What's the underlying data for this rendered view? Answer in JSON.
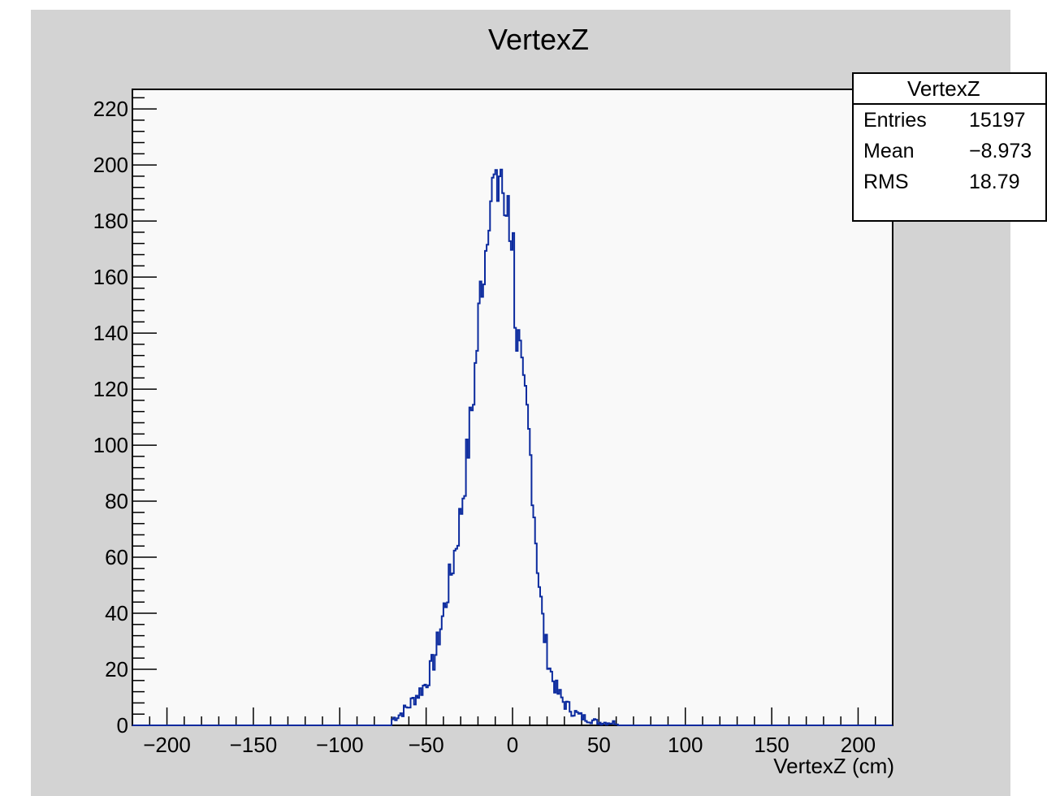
{
  "chart_data": {
    "type": "line",
    "title": "VertexZ",
    "xlabel": "VertexZ (cm)",
    "ylabel": "",
    "xlim": [
      -220,
      220
    ],
    "ylim": [
      0,
      227
    ],
    "xticks": [
      -200,
      -150,
      -100,
      -50,
      0,
      50,
      100,
      150,
      200
    ],
    "xtick_labels": [
      "−200",
      "−150",
      "−100",
      "−50",
      "0",
      "50",
      "100",
      "150",
      "200"
    ],
    "yticks": [
      0,
      20,
      40,
      60,
      80,
      100,
      120,
      140,
      160,
      180,
      200,
      220
    ],
    "ytick_labels": [
      "0",
      "20",
      "40",
      "60",
      "80",
      "100",
      "120",
      "140",
      "160",
      "180",
      "200",
      "220"
    ],
    "grid": false,
    "legend": "none",
    "series": [
      {
        "color": "#0b2a9e",
        "bin_width": 1,
        "x": [
          -70,
          -65,
          -60,
          -55,
          -50,
          -45,
          -40,
          -35,
          -30,
          -25,
          -22,
          -20,
          -18,
          -16,
          -14,
          -12,
          -10,
          -9,
          -8,
          -7,
          -6,
          -5,
          -4,
          -3,
          -2,
          -1,
          0,
          2,
          4,
          6,
          8,
          10,
          12,
          14,
          16,
          18,
          20,
          23,
          26,
          30,
          35,
          40,
          45,
          50,
          55,
          60,
          65,
          70
        ],
        "y": [
          2,
          4,
          7,
          11,
          15,
          24,
          40,
          56,
          75,
          103,
          123,
          140,
          160,
          165,
          187,
          190,
          194,
          180,
          203,
          192,
          205,
          178,
          170,
          196,
          185,
          172,
          180,
          140,
          134,
          118,
          113,
          100,
          82,
          62,
          47,
          34,
          26,
          17,
          12,
          8,
          5,
          3,
          2,
          1,
          1,
          1,
          0,
          0
        ]
      }
    ],
    "stats": {
      "title": "VertexZ",
      "entries_label": "Entries",
      "entries_value": "15197",
      "mean_label": "Mean",
      "mean_value": "−8.973",
      "rms_label": "RMS",
      "rms_value": "18.79"
    }
  }
}
